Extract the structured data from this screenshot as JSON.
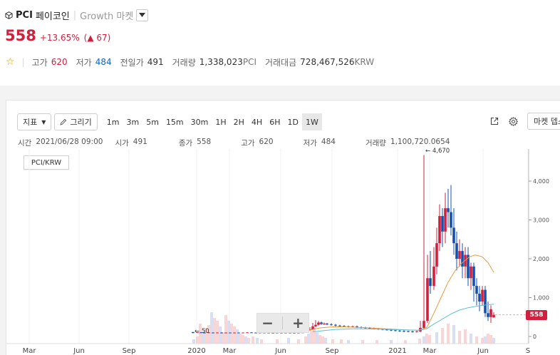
{
  "coin": {
    "symbol": "PCI",
    "korean_name": "페이코인",
    "market": "Growth 마켓",
    "icon": "coin-cube-icon"
  },
  "price": {
    "current": "558",
    "change_pct": "+13.65%",
    "change_abs": "▲ 67"
  },
  "stats": {
    "high_label": "고가",
    "high": "620",
    "low_label": "저가",
    "low": "484",
    "prev_label": "전일가",
    "prev": "491",
    "volume_label": "거래량",
    "volume": "1,338,023",
    "volume_unit": "PCI",
    "amount_label": "거래대금",
    "amount": "728,467,526",
    "amount_unit": "KRW"
  },
  "toolbar": {
    "indicator": "지표",
    "draw": "그리기",
    "periods": [
      "1m",
      "3m",
      "5m",
      "15m",
      "30m",
      "1H",
      "2H",
      "4H",
      "6H",
      "1D",
      "1W"
    ],
    "active_period": "1W",
    "market_depth": "마켓 뎁스"
  },
  "ohlc": {
    "time_label": "시간",
    "time": "2021/06/28 09:00",
    "open_label": "시가",
    "open": "491",
    "close_label": "종가",
    "close": "558",
    "high_label": "고가",
    "high": "620",
    "low_label": "저가",
    "low": "484",
    "volume_label": "거래량",
    "volume": "1,100,720.0654"
  },
  "chart_data": {
    "type": "candlestick",
    "pair": "PCI/KRW",
    "y_ticks": [
      "0",
      "1,000",
      "2,000",
      "3,000",
      "4,000"
    ],
    "ylim": [
      0,
      4000
    ],
    "x_ticks": [
      "Mar",
      "Jun",
      "Sep",
      "2020",
      "Mar",
      "Jun",
      "Sep",
      "2021",
      "Mar",
      "Jun",
      "S"
    ],
    "peak_label": "4,670",
    "low_label": "50",
    "last_price": "558",
    "colors": {
      "up": "#d1203d",
      "down": "#1550b0",
      "ma_orange": "#e89a3c",
      "ma_cyan": "#5bbfd6"
    }
  }
}
